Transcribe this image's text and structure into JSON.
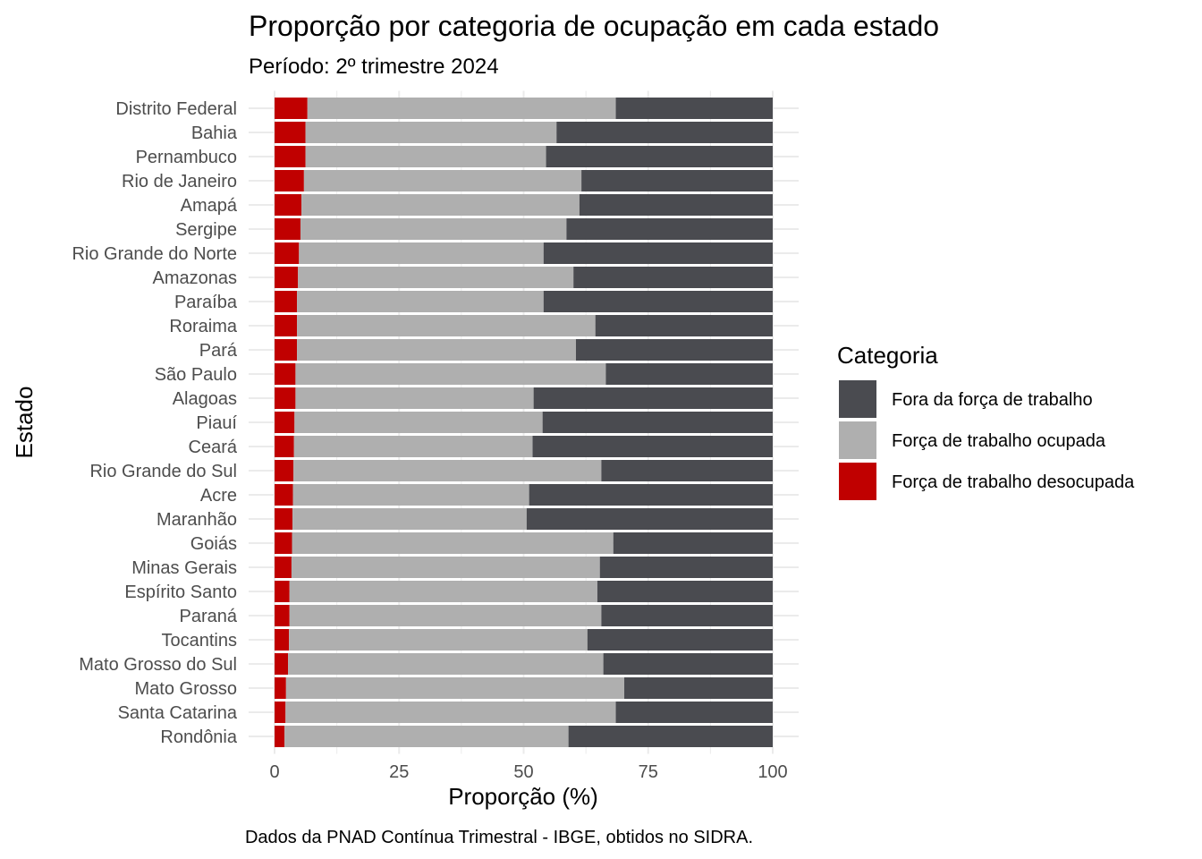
{
  "chart_data": {
    "type": "bar",
    "orientation": "horizontal",
    "stacked": true,
    "title": "Proporção por categoria de ocupação em cada estado",
    "subtitle": "Período: 2º trimestre 2024",
    "xlabel": "Proporção (%)",
    "ylabel": "Estado",
    "caption": "Dados da PNAD Contínua Trimestral - IBGE, obtidos no SIDRA.",
    "xlim": [
      0,
      100
    ],
    "x_ticks": [
      "0",
      "25",
      "50",
      "75",
      "100"
    ],
    "grid": true,
    "legend": {
      "title": "Categoria",
      "position": "right",
      "entries": [
        "Fora da força de trabalho",
        "Força de trabalho ocupada",
        "Força de trabalho desocupada"
      ]
    },
    "categories": [
      "Distrito Federal",
      "Bahia",
      "Pernambuco",
      "Rio de Janeiro",
      "Amapá",
      "Sergipe",
      "Rio Grande do Norte",
      "Amazonas",
      "Paraíba",
      "Roraima",
      "Pará",
      "São Paulo",
      "Alagoas",
      "Piauí",
      "Ceará",
      "Rio Grande do Sul",
      "Acre",
      "Maranhão",
      "Goiás",
      "Minas Gerais",
      "Espírito Santo",
      "Paraná",
      "Tocantins",
      "Mato Grosso do Sul",
      "Mato Grosso",
      "Santa Catarina",
      "Rondônia"
    ],
    "series": [
      {
        "name": "Força de trabalho desocupada",
        "color": "#c00000",
        "values": [
          6.6,
          6.2,
          6.2,
          5.9,
          5.4,
          5.2,
          4.9,
          4.7,
          4.5,
          4.5,
          4.5,
          4.2,
          4.2,
          4.0,
          3.9,
          3.8,
          3.7,
          3.6,
          3.5,
          3.4,
          3.0,
          3.0,
          2.9,
          2.7,
          2.3,
          2.2,
          2.0
        ]
      },
      {
        "name": "Força de trabalho ocupada",
        "color": "#afafaf",
        "values": [
          61.9,
          50.4,
          48.3,
          55.7,
          55.8,
          53.4,
          49.1,
          55.3,
          49.5,
          59.9,
          56.0,
          62.3,
          47.8,
          49.8,
          47.9,
          61.8,
          47.4,
          47.0,
          64.5,
          61.9,
          61.8,
          62.6,
          59.9,
          63.3,
          67.9,
          66.3,
          57.0
        ]
      },
      {
        "name": "Fora da força de trabalho",
        "color": "#4a4b50",
        "values": [
          31.5,
          43.4,
          45.5,
          38.4,
          38.8,
          41.4,
          46.0,
          40.0,
          46.0,
          35.6,
          39.5,
          33.5,
          48.0,
          46.2,
          48.2,
          34.4,
          48.9,
          49.4,
          32.0,
          34.7,
          35.2,
          34.4,
          37.2,
          34.0,
          29.8,
          31.5,
          41.0
        ]
      }
    ]
  }
}
